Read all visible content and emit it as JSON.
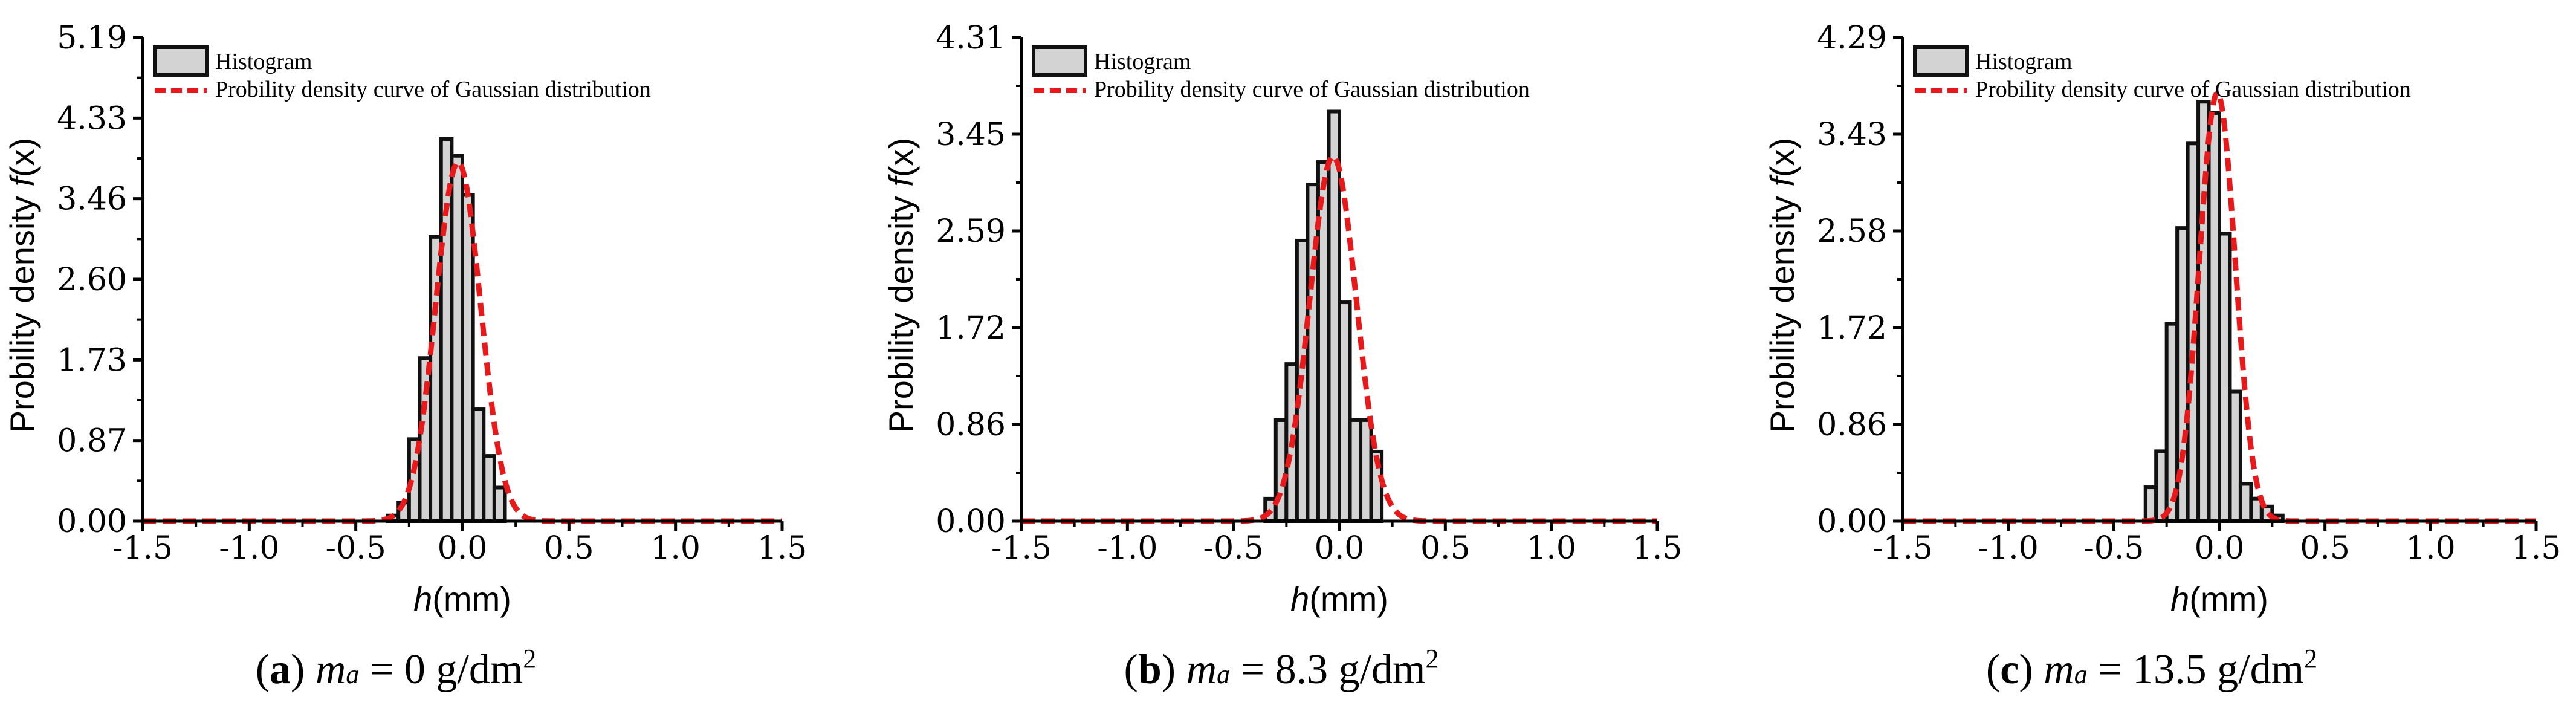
{
  "chart_data": [
    {
      "type": "bar",
      "panel": "a",
      "caption": {
        "letter": "a",
        "var": "m",
        "sub": "a",
        "rest": " = 0 g/dm",
        "sup": "2"
      },
      "xlabel": {
        "italic": "h",
        "rest": "(mm)"
      },
      "ylabel": {
        "prefix": "Probility density ",
        "italic": "f",
        "suffix": "(x)"
      },
      "xlim": [
        -1.5,
        1.5
      ],
      "ylim": [
        0,
        5.19
      ],
      "xticks": [
        "-1.5",
        "-1.0",
        "-0.5",
        "0.0",
        "0.5",
        "1.0",
        "1.5"
      ],
      "yticks": [
        "0.00",
        "0.87",
        "1.73",
        "2.60",
        "3.46",
        "4.33",
        "5.19"
      ],
      "legend": [
        "Histogram",
        "Probility density curve of Gaussian distribution"
      ],
      "bin_width": 0.05,
      "bins_left": [
        -0.35,
        -0.3,
        -0.25,
        -0.2,
        -0.15,
        -0.1,
        -0.05,
        0.0,
        0.05,
        0.1,
        0.15,
        0.2
      ],
      "values": [
        0.06,
        0.2,
        0.88,
        1.75,
        3.05,
        4.1,
        3.92,
        3.5,
        1.2,
        0.7,
        0.36,
        0.0
      ],
      "gaussian": {
        "mu": -0.02,
        "sigma": 0.105,
        "peak": 3.85
      }
    },
    {
      "type": "bar",
      "panel": "b",
      "caption": {
        "letter": "b",
        "var": "m",
        "sub": "a",
        "rest": " = 8.3 g/dm",
        "sup": "2"
      },
      "xlabel": {
        "italic": "h",
        "rest": "(mm)"
      },
      "ylabel": {
        "prefix": "Probility density ",
        "italic": "f",
        "suffix": "(x)"
      },
      "xlim": [
        -1.5,
        1.5
      ],
      "ylim": [
        0,
        4.31
      ],
      "xticks": [
        "-1.5",
        "-1.0",
        "-0.5",
        "0.0",
        "0.5",
        "1.0",
        "1.5"
      ],
      "yticks": [
        "0.00",
        "0.86",
        "1.72",
        "2.59",
        "3.45",
        "4.31"
      ],
      "legend": [
        "Histogram",
        "Probility density curve of Gaussian distribution"
      ],
      "bin_width": 0.05,
      "bins_left": [
        -0.35,
        -0.3,
        -0.25,
        -0.2,
        -0.15,
        -0.1,
        -0.05,
        0.0,
        0.05,
        0.1,
        0.15,
        0.2,
        0.25
      ],
      "values": [
        0.2,
        0.9,
        1.4,
        2.5,
        3.0,
        3.2,
        3.65,
        1.95,
        0.9,
        0.9,
        0.62,
        0.0,
        0.0
      ],
      "gaussian": {
        "mu": -0.03,
        "sigma": 0.11,
        "peak": 3.25
      }
    },
    {
      "type": "bar",
      "panel": "c",
      "caption": {
        "letter": "c",
        "var": "m",
        "sub": "a",
        "rest": " = 13.5 g/dm",
        "sup": "2"
      },
      "xlabel": {
        "italic": "h",
        "rest": "(mm)"
      },
      "ylabel": {
        "prefix": "Probility density ",
        "italic": "f",
        "suffix": "(x)"
      },
      "xlim": [
        -1.5,
        1.5
      ],
      "ylim": [
        0,
        4.29
      ],
      "xticks": [
        "-1.5",
        "-1.0",
        "-0.5",
        "0.0",
        "0.5",
        "1.0",
        "1.5"
      ],
      "yticks": [
        "0.00",
        "0.86",
        "1.72",
        "2.58",
        "3.43",
        "4.29"
      ],
      "legend": [
        "Histogram",
        "Probility density curve of Gaussian distribution"
      ],
      "bin_width": 0.05,
      "bins_left": [
        -0.35,
        -0.3,
        -0.25,
        -0.2,
        -0.15,
        -0.1,
        -0.05,
        0.0,
        0.05,
        0.1,
        0.15,
        0.2,
        0.25
      ],
      "values": [
        0.3,
        0.62,
        1.75,
        2.6,
        3.35,
        3.72,
        3.62,
        2.55,
        1.15,
        0.33,
        0.2,
        0.13,
        0.05
      ],
      "gaussian": {
        "mu": -0.01,
        "sigma": 0.085,
        "peak": 3.8
      }
    }
  ],
  "colors": {
    "bar_fill": "#d3d3d3",
    "bar_stroke": "#111111",
    "curve": "#e8191a",
    "axis": "#000000"
  }
}
